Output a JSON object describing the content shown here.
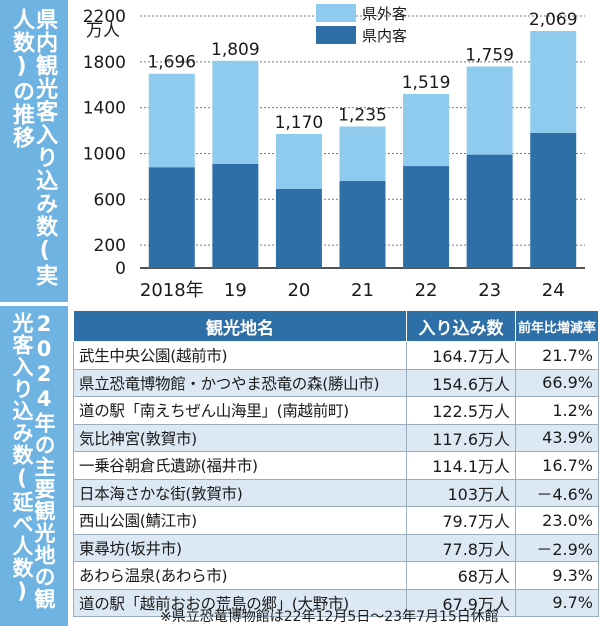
{
  "chart_title": "県内観光客入り込み数(実人数)の推移",
  "table_title": "2024年の主要観光地の観光客入り込み数(延べ人数)",
  "chart_data": {
    "type": "bar",
    "stacked": true,
    "categories": [
      "2018年",
      "19",
      "20",
      "21",
      "22",
      "23",
      "24"
    ],
    "series": [
      {
        "name": "県内客",
        "values": [
          880,
          910,
          690,
          760,
          890,
          990,
          1180
        ],
        "color": "#2f6fa8"
      },
      {
        "name": "県外客",
        "values": [
          816,
          899,
          480,
          475,
          629,
          769,
          889
        ],
        "color": "#8fcbee"
      }
    ],
    "totals": [
      "1,696",
      "1,809",
      "1,170",
      "1,235",
      "1,519",
      "1,759",
      "2,069"
    ],
    "total_values": [
      1696,
      1809,
      1170,
      1235,
      1519,
      1759,
      2069
    ],
    "ylim": [
      0,
      2200
    ],
    "yticks": [
      0,
      200,
      600,
      1000,
      1400,
      1800,
      2200
    ],
    "ytick_labels": [
      "0",
      "200",
      "600",
      "1000",
      "1400",
      "1800",
      "2200"
    ],
    "yunit": "万人",
    "legend_position": "top-right",
    "grid": true
  },
  "table": {
    "headers": [
      "観光地名",
      "入り込み数",
      "前年比増減率"
    ],
    "rows": [
      {
        "name": "武生中央公園(越前市)",
        "visitors": "164.7万人",
        "change": "21.7%"
      },
      {
        "name": "県立恐竜博物館・かつやま恐竜の森(勝山市)",
        "visitors": "154.6万人",
        "change": "66.9%"
      },
      {
        "name": "道の駅「南えちぜん山海里」(南越前町)",
        "visitors": "122.5万人",
        "change": "1.2%"
      },
      {
        "name": "気比神宮(敦賀市)",
        "visitors": "117.6万人",
        "change": "43.9%"
      },
      {
        "name": "一乗谷朝倉氏遺跡(福井市)",
        "visitors": "114.1万人",
        "change": "16.7%"
      },
      {
        "name": "日本海さかな街(敦賀市)",
        "visitors": "103万人",
        "change": "－4.6%"
      },
      {
        "name": "西山公園(鯖江市)",
        "visitors": "79.7万人",
        "change": "23.0%"
      },
      {
        "name": "東尋坊(坂井市)",
        "visitors": "77.8万人",
        "change": "－2.9%"
      },
      {
        "name": "あわら温泉(あわら市)",
        "visitors": "68万人",
        "change": "9.3%"
      },
      {
        "name": "道の駅「越前おおの荒島の郷」(大野市)",
        "visitors": "67.9万人",
        "change": "9.7%"
      }
    ]
  },
  "note": "※県立恐竜博物館は22年12月5日～23年7月15日休館"
}
